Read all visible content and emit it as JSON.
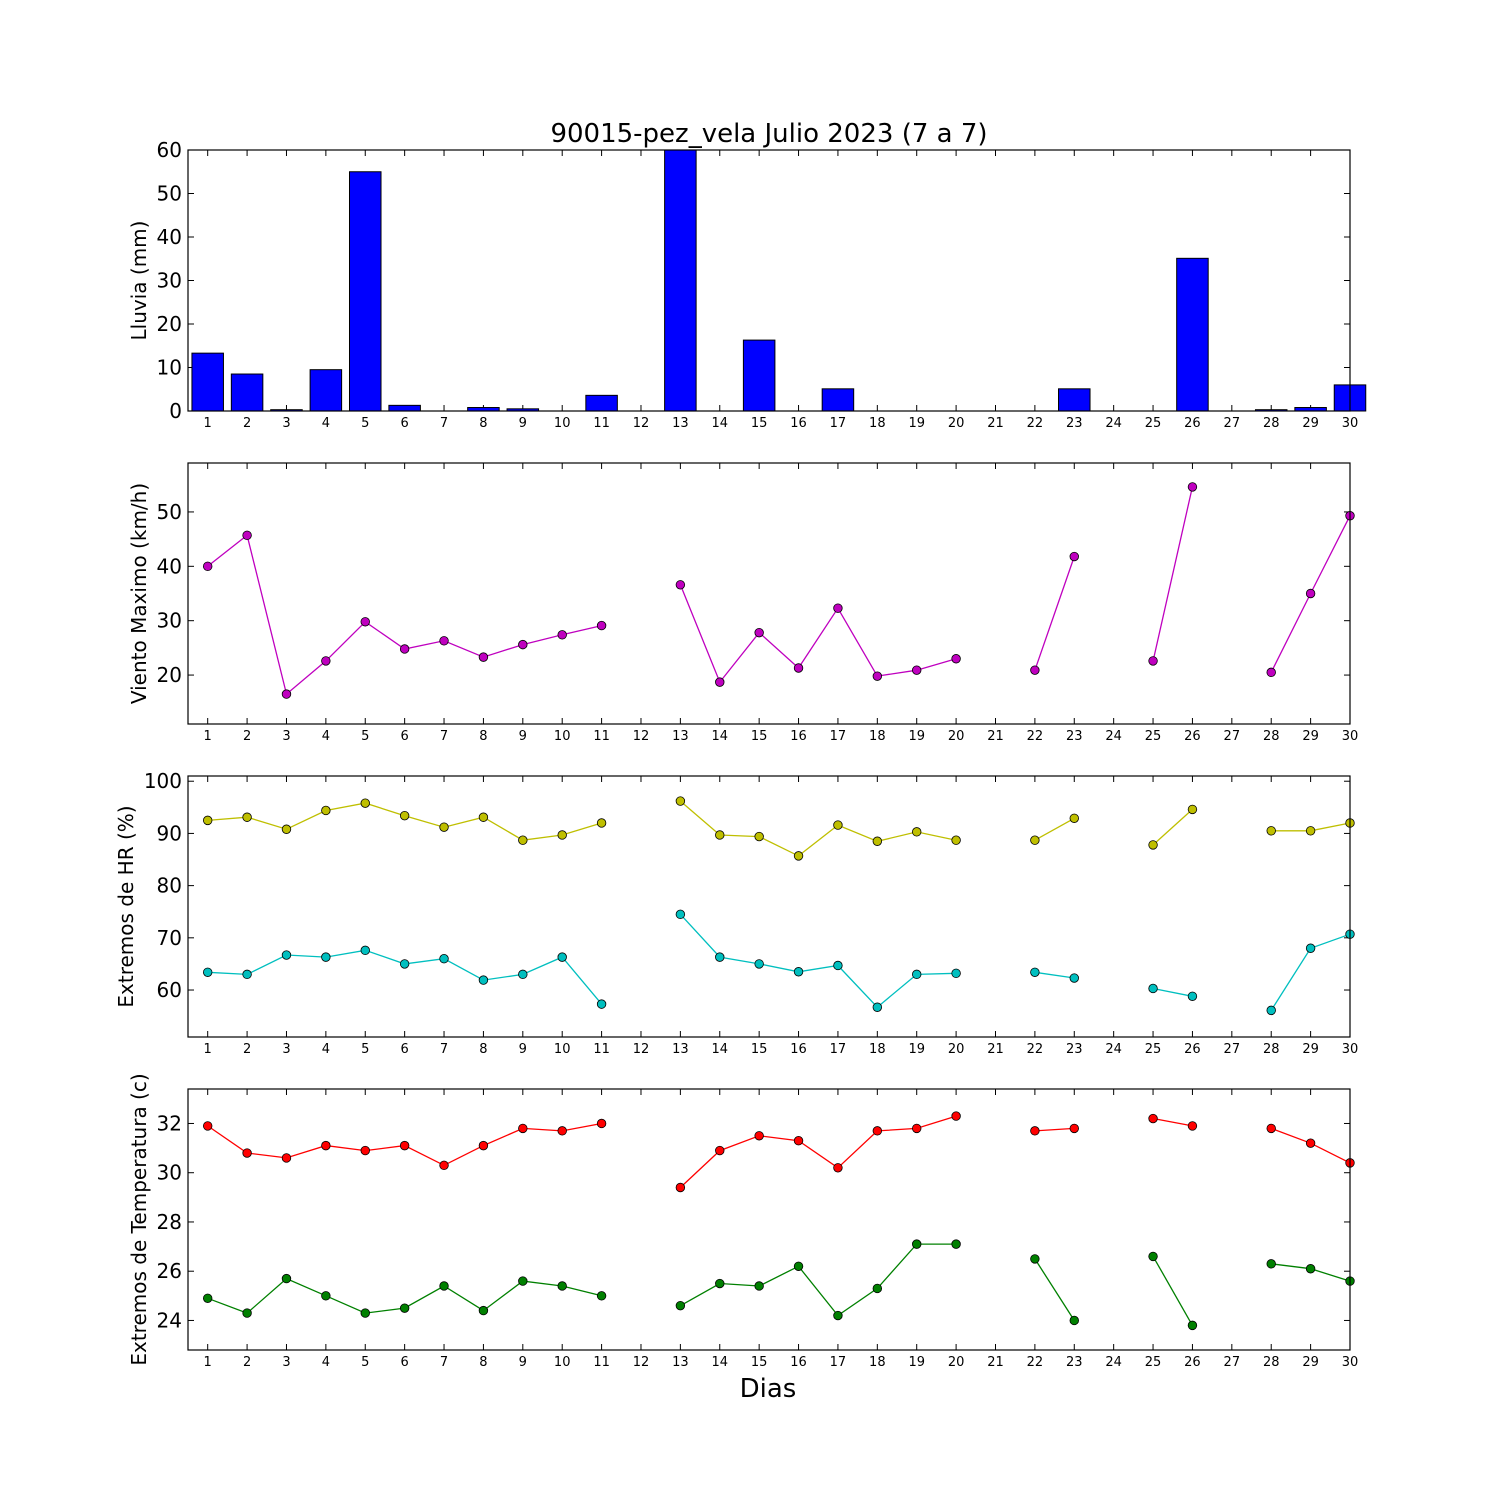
{
  "chart_data": {
    "title": "90015-pez_vela Julio 2023  (7 a 7)",
    "xlabel": "Dias",
    "x_ticks": [
      "1",
      "2",
      "3",
      "4",
      "5",
      "6",
      "7",
      "8",
      "9",
      "10",
      "11",
      "12",
      "13",
      "14",
      "15",
      "16",
      "17",
      "18",
      "19",
      "20",
      "21",
      "22",
      "23",
      "24",
      "25",
      "26",
      "27",
      "28",
      "29",
      "30"
    ],
    "panels": [
      {
        "type": "bar",
        "ylabel": "Lluvia (mm)",
        "ylim": [
          0,
          60
        ],
        "yticks": [
          0,
          10,
          20,
          30,
          40,
          50,
          60
        ],
        "series": [
          {
            "color": "#0000ff",
            "values": [
              13.3,
              8.5,
              0.3,
              9.5,
              55.0,
              1.3,
              0.0,
              0.8,
              0.5,
              0.0,
              3.6,
              0.0,
              60.0,
              0.0,
              16.3,
              0.0,
              5.1,
              0.0,
              0.0,
              0.0,
              0.0,
              0.0,
              5.1,
              0.0,
              0.0,
              35.1,
              0.0,
              0.3,
              0.8,
              6.0
            ]
          }
        ]
      },
      {
        "type": "line",
        "ylabel": "Viento Maximo (km/h)",
        "ylim": [
          11,
          59
        ],
        "yticks": [
          20,
          30,
          40,
          50
        ],
        "series": [
          {
            "color": "#bf00bf",
            "values": [
              40.0,
              45.7,
              16.5,
              22.6,
              29.8,
              24.8,
              26.3,
              23.3,
              25.6,
              27.4,
              29.1,
              null,
              36.6,
              18.7,
              27.8,
              21.3,
              32.3,
              19.8,
              20.9,
              23.0,
              null,
              20.9,
              41.8,
              null,
              22.6,
              54.6,
              null,
              20.5,
              35.0,
              49.3
            ]
          }
        ]
      },
      {
        "type": "line",
        "ylabel": "Extremos de HR (%)",
        "ylim": [
          51,
          101
        ],
        "yticks": [
          60,
          70,
          80,
          90,
          100
        ],
        "series": [
          {
            "color": "#bfbf00",
            "values": [
              92.5,
              93.1,
              90.8,
              94.4,
              95.8,
              93.4,
              91.2,
              93.1,
              88.7,
              89.7,
              92.0,
              null,
              96.2,
              89.7,
              89.4,
              85.7,
              91.6,
              88.5,
              90.3,
              88.7,
              null,
              88.7,
              92.9,
              null,
              87.8,
              94.6,
              null,
              90.5,
              90.5,
              92.0
            ]
          },
          {
            "color": "#00bfbf",
            "values": [
              63.4,
              63.0,
              66.7,
              66.3,
              67.6,
              65.0,
              66.0,
              61.9,
              63.0,
              66.3,
              57.3,
              null,
              74.5,
              66.3,
              65.0,
              63.5,
              64.7,
              56.7,
              63.0,
              63.2,
              null,
              63.4,
              62.3,
              null,
              60.3,
              58.8,
              null,
              56.1,
              68.0,
              70.7
            ]
          }
        ]
      },
      {
        "type": "line",
        "ylabel": "Extremos de Temperatura (c)",
        "ylim": [
          22.8,
          33.4
        ],
        "yticks": [
          24,
          26,
          28,
          30,
          32
        ],
        "series": [
          {
            "color": "#ff0000",
            "values": [
              31.9,
              30.8,
              30.6,
              31.1,
              30.9,
              31.1,
              30.3,
              31.1,
              31.8,
              31.7,
              32.0,
              null,
              29.4,
              30.9,
              31.5,
              31.3,
              30.2,
              31.7,
              31.8,
              32.3,
              null,
              31.7,
              31.8,
              null,
              32.2,
              31.9,
              null,
              31.8,
              31.2,
              30.4
            ]
          },
          {
            "color": "#008000",
            "values": [
              24.9,
              24.3,
              25.7,
              25.0,
              24.3,
              24.5,
              25.4,
              24.4,
              25.6,
              25.4,
              25.0,
              null,
              24.6,
              25.5,
              25.4,
              26.2,
              24.2,
              25.3,
              27.1,
              27.1,
              null,
              26.5,
              24.0,
              null,
              26.6,
              23.8,
              null,
              26.3,
              26.1,
              25.6
            ]
          }
        ]
      }
    ]
  }
}
